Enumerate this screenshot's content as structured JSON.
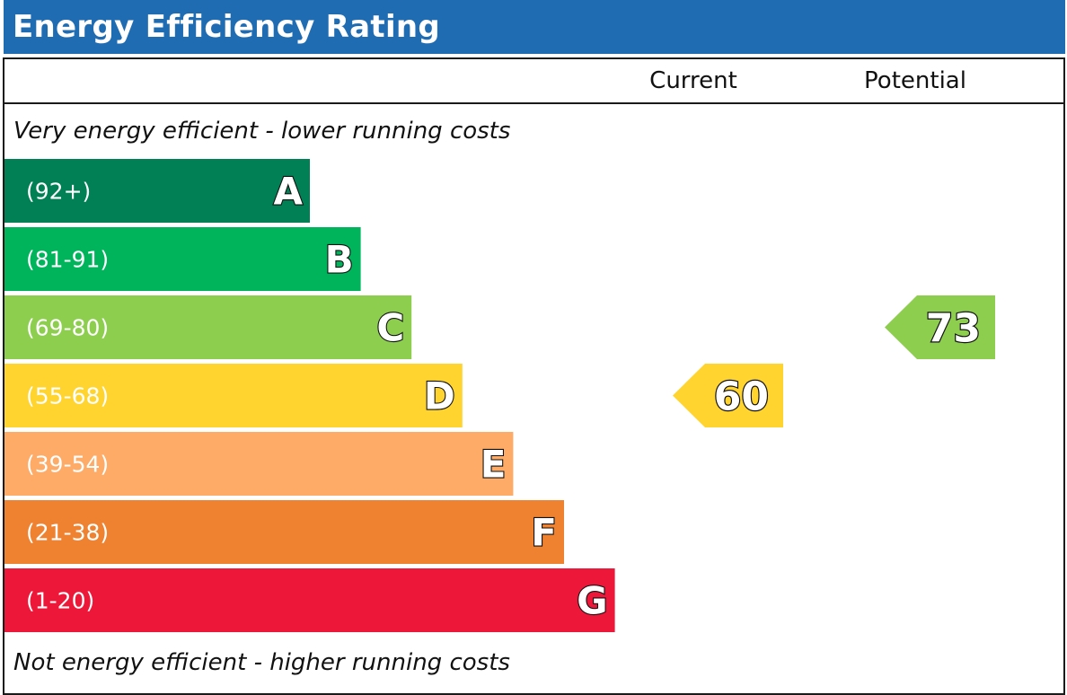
{
  "header": {
    "title": "Energy Efficiency Rating"
  },
  "columns": {
    "current_label": "Current",
    "potential_label": "Potential"
  },
  "captions": {
    "top": "Very energy efficient - lower running costs",
    "bottom": "Not energy efficient - higher running costs"
  },
  "chart_data": {
    "type": "bar",
    "title": "Energy Efficiency Rating",
    "categories": [
      "A",
      "B",
      "C",
      "D",
      "E",
      "F",
      "G"
    ],
    "bands": [
      {
        "letter": "A",
        "range": "(92+)",
        "min": 92,
        "max": 100,
        "color": "#008054"
      },
      {
        "letter": "B",
        "range": "(81-91)",
        "min": 81,
        "max": 91,
        "color": "#00b45c"
      },
      {
        "letter": "C",
        "range": "(69-80)",
        "min": 69,
        "max": 80,
        "color": "#8dce4f"
      },
      {
        "letter": "D",
        "range": "(55-68)",
        "min": 55,
        "max": 68,
        "color": "#ffd42e"
      },
      {
        "letter": "E",
        "range": "(39-54)",
        "min": 39,
        "max": 54,
        "color": "#fdab67"
      },
      {
        "letter": "F",
        "range": "(21-38)",
        "min": 21,
        "max": 38,
        "color": "#ef8230"
      },
      {
        "letter": "G",
        "range": "(1-20)",
        "min": 1,
        "max": 20,
        "color": "#ed1839"
      }
    ],
    "series": [
      {
        "name": "Current",
        "value": 60,
        "band": "D",
        "color": "#ffd42e"
      },
      {
        "name": "Potential",
        "value": 73,
        "band": "C",
        "color": "#8dce4f"
      }
    ]
  }
}
